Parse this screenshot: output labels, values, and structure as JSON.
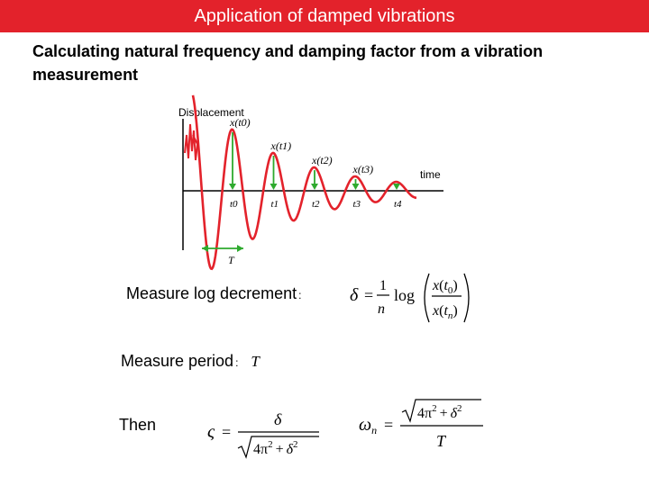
{
  "slide": {
    "title": "Application of damped vibrations",
    "subtitle": "Calculating natural frequency and damping factor from a vibration measurement"
  },
  "figure": {
    "y_axis_label": "Displacement",
    "x_axis_label": "time",
    "peak_labels": [
      "x(t0)",
      "x(t1)",
      "x(t2)",
      "x(t3)"
    ],
    "time_labels": [
      "t0",
      "t1",
      "t2",
      "t3",
      "t4"
    ],
    "period_label": "T",
    "colors": {
      "signal": "#e3222b",
      "markers": "#2eaa2e",
      "axes": "#000000"
    }
  },
  "rows": {
    "log_decrement": {
      "label": "Measure log decrement",
      "separator": ":"
    },
    "period": {
      "label": "Measure period",
      "separator": ":",
      "symbol": "T"
    },
    "then": {
      "label": "Then"
    }
  },
  "formulas": {
    "log_decrement": {
      "lhs": "δ",
      "eq": "=",
      "num": "1",
      "den": "n",
      "fn": "log",
      "inner_num_var": "x",
      "inner_num_arg": "t",
      "inner_num_sub": "0",
      "inner_den_var": "x",
      "inner_den_arg": "t",
      "inner_den_sub": "n"
    },
    "damping": {
      "lhs": "ς",
      "eq": "=",
      "num": "δ",
      "radicand_a": "4π",
      "plus": "+",
      "radicand_b": "δ",
      "exp": "2"
    },
    "natural_freq": {
      "lhs_var": "ω",
      "lhs_sub": "n",
      "eq": "=",
      "radicand_a": "4π",
      "plus": "+",
      "radicand_b": "δ",
      "exp": "2",
      "den": "T"
    }
  }
}
